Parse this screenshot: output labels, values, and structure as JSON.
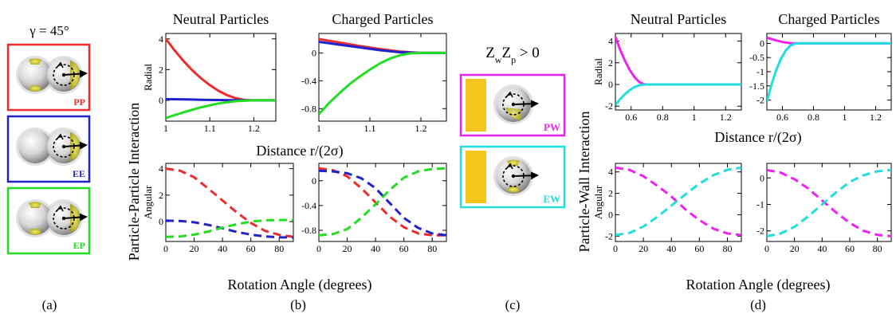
{
  "panel_a": {
    "gamma_label": "γ = 45°",
    "boxes": [
      {
        "label": "PP",
        "color": "#ee2b2b",
        "left_cap": true,
        "right_cap": true
      },
      {
        "label": "EE",
        "color": "#2222cc",
        "left_cap": false,
        "right_cap": true
      },
      {
        "label": "EP",
        "color": "#22dd22",
        "left_cap": true,
        "right_cap": true
      }
    ]
  },
  "panel_c": {
    "condition": "Z_wZ_p > 0",
    "boxes": [
      {
        "label": "PW",
        "color": "#ee22ee"
      },
      {
        "label": "EW",
        "color": "#22dddd"
      }
    ]
  },
  "panel_labels": [
    "(a)",
    "(b)",
    "(c)",
    "(d)"
  ],
  "colors": {
    "PP": "#ee2b2b",
    "EE": "#2222cc",
    "EP": "#22dd22",
    "PW": "#ee22ee",
    "EW": "#22dddd",
    "wall": "#f5c51e",
    "cap": "#d8d23c"
  },
  "chart_data": [
    {
      "id": "b-radial-neutral",
      "type": "line",
      "title": "Neutral Particles",
      "ylabel": "Radial",
      "xlim": [
        1,
        1.25
      ],
      "ylim": [
        -1.35,
        4.35
      ],
      "xticks": [
        1,
        1.1,
        1.2
      ],
      "xticklabels": [
        "1",
        "1.1",
        "1.2"
      ],
      "yticks": [
        0,
        2,
        4
      ],
      "yticklabels": [
        "0",
        "2",
        "4"
      ],
      "series": [
        {
          "color": "#ee2b2b",
          "dash": false,
          "x": [
            1,
            1.02,
            1.04,
            1.06,
            1.08,
            1.1,
            1.12,
            1.14,
            1.16,
            1.18,
            1.2,
            1.22,
            1.25
          ],
          "y": [
            4.0,
            3.25,
            2.57,
            1.96,
            1.44,
            0.99,
            0.62,
            0.33,
            0.13,
            0.02,
            0,
            0,
            0
          ]
        },
        {
          "color": "#2222cc",
          "dash": false,
          "x": [
            1,
            1.05,
            1.1,
            1.15,
            1.2,
            1.25
          ],
          "y": [
            0.08,
            0.06,
            0.03,
            0.01,
            0,
            0
          ]
        },
        {
          "color": "#22dd22",
          "dash": false,
          "x": [
            1,
            1.04,
            1.08,
            1.12,
            1.16,
            1.2,
            1.25
          ],
          "y": [
            -1.15,
            -0.78,
            -0.45,
            -0.2,
            -0.05,
            0,
            0
          ]
        }
      ]
    },
    {
      "id": "b-radial-charged",
      "type": "line",
      "title": "Charged Particles",
      "xlim": [
        1,
        1.25
      ],
      "ylim": [
        -0.98,
        0.28
      ],
      "xticks": [
        1,
        1.1,
        1.2
      ],
      "xticklabels": [
        "1",
        "1.1",
        "1.2"
      ],
      "yticks": [
        0,
        -0.4,
        -0.8
      ],
      "yticklabels": [
        "0",
        "-0.4",
        "-0.8"
      ],
      "series": [
        {
          "color": "#ee2b2b",
          "dash": false,
          "x": [
            1,
            1.04,
            1.08,
            1.12,
            1.16,
            1.2,
            1.25
          ],
          "y": [
            0.2,
            0.15,
            0.1,
            0.055,
            0.02,
            0,
            0
          ]
        },
        {
          "color": "#2222cc",
          "dash": false,
          "x": [
            1,
            1.04,
            1.08,
            1.12,
            1.16,
            1.2,
            1.25
          ],
          "y": [
            0.16,
            0.12,
            0.08,
            0.04,
            0.01,
            0,
            0
          ]
        },
        {
          "color": "#22dd22",
          "dash": false,
          "x": [
            1,
            1.02,
            1.04,
            1.06,
            1.08,
            1.1,
            1.12,
            1.14,
            1.16,
            1.18,
            1.2,
            1.25
          ],
          "y": [
            -0.88,
            -0.72,
            -0.58,
            -0.45,
            -0.34,
            -0.24,
            -0.15,
            -0.08,
            -0.03,
            -0.005,
            0,
            0
          ]
        }
      ]
    },
    {
      "id": "b-angular-neutral",
      "type": "line",
      "ylabel": "Angular",
      "xlim": [
        0,
        90
      ],
      "ylim": [
        -1.5,
        4.4
      ],
      "xticks": [
        0,
        20,
        40,
        60,
        80
      ],
      "xticklabels": [
        "0",
        "20",
        "40",
        "60",
        "80"
      ],
      "yticks": [
        0,
        2,
        4
      ],
      "yticklabels": [
        "0",
        "2",
        "4"
      ],
      "series": [
        {
          "color": "#ee2b2b",
          "dash": true,
          "x": [
            0,
            10,
            20,
            30,
            40,
            50,
            60,
            70,
            80,
            90
          ],
          "y": [
            4.0,
            3.85,
            3.35,
            2.5,
            1.6,
            0.7,
            -0.1,
            -0.7,
            -1.0,
            -1.15
          ]
        },
        {
          "color": "#2222cc",
          "dash": true,
          "x": [
            0,
            10,
            20,
            30,
            40,
            50,
            60,
            70,
            80,
            90
          ],
          "y": [
            0.08,
            0.05,
            -0.05,
            -0.25,
            -0.5,
            -0.78,
            -0.98,
            -1.12,
            -1.18,
            -1.2
          ]
        },
        {
          "color": "#22dd22",
          "dash": true,
          "x": [
            0,
            10,
            20,
            30,
            40,
            50,
            60,
            70,
            80,
            90
          ],
          "y": [
            -1.15,
            -1.12,
            -0.98,
            -0.75,
            -0.45,
            -0.2,
            0,
            0.1,
            0.12,
            0.12
          ]
        }
      ]
    },
    {
      "id": "b-angular-charged",
      "type": "line",
      "xlim": [
        0,
        90
      ],
      "ylim": [
        -0.98,
        0.28
      ],
      "xticks": [
        0,
        20,
        40,
        60,
        80
      ],
      "xticklabels": [
        "0",
        "20",
        "40",
        "60",
        "80"
      ],
      "yticks": [
        0,
        -0.4,
        -0.8
      ],
      "yticklabels": [
        "0",
        "-0.4",
        "-0.8"
      ],
      "series": [
        {
          "color": "#ee2b2b",
          "dash": true,
          "x": [
            0,
            10,
            20,
            30,
            40,
            50,
            60,
            70,
            80,
            90
          ],
          "y": [
            0.2,
            0.17,
            0.07,
            -0.12,
            -0.35,
            -0.58,
            -0.75,
            -0.85,
            -0.88,
            -0.88
          ]
        },
        {
          "color": "#2222cc",
          "dash": true,
          "x": [
            0,
            10,
            20,
            30,
            40,
            50,
            60,
            70,
            80,
            90
          ],
          "y": [
            0.16,
            0.15,
            0.12,
            0.04,
            -0.12,
            -0.36,
            -0.6,
            -0.76,
            -0.85,
            -0.88
          ]
        },
        {
          "color": "#22dd22",
          "dash": true,
          "x": [
            0,
            10,
            20,
            30,
            40,
            50,
            60,
            70,
            80,
            90
          ],
          "y": [
            -0.88,
            -0.86,
            -0.78,
            -0.6,
            -0.38,
            -0.15,
            0.05,
            0.15,
            0.19,
            0.2
          ]
        }
      ]
    },
    {
      "id": "d-radial-neutral",
      "type": "line",
      "title": "Neutral Particles",
      "ylabel": "Radial",
      "xlim": [
        0.5,
        1.3
      ],
      "ylim": [
        -2.35,
        4.7
      ],
      "xticks": [
        0.6,
        0.8,
        1,
        1.2
      ],
      "xticklabels": [
        "0.6",
        "0.8",
        "1",
        "1.2"
      ],
      "yticks": [
        -2,
        0,
        2,
        4
      ],
      "yticklabels": [
        "-2",
        "0",
        "2",
        "4"
      ],
      "series": [
        {
          "color": "#ee22ee",
          "dash": false,
          "x": [
            0.5,
            0.53,
            0.56,
            0.59,
            0.62,
            0.65,
            0.68,
            0.7,
            0.8,
            1.0,
            1.3
          ],
          "y": [
            4.4,
            3.2,
            2.2,
            1.35,
            0.7,
            0.25,
            0.03,
            0,
            0,
            0,
            0
          ]
        },
        {
          "color": "#22dddd",
          "dash": false,
          "x": [
            0.5,
            0.53,
            0.56,
            0.59,
            0.62,
            0.65,
            0.68,
            0.7,
            0.8,
            1.0,
            1.3
          ],
          "y": [
            -1.9,
            -1.35,
            -0.9,
            -0.52,
            -0.25,
            -0.08,
            -0.01,
            0,
            0,
            0,
            0
          ]
        }
      ]
    },
    {
      "id": "d-radial-charged",
      "type": "line",
      "title": "Charged Particles",
      "xlim": [
        0.5,
        1.3
      ],
      "ylim": [
        -2.35,
        0.35
      ],
      "xticks": [
        0.6,
        0.8,
        1,
        1.2
      ],
      "xticklabels": [
        "0.6",
        "0.8",
        "1",
        "1.2"
      ],
      "yticks": [
        -2,
        -1.5,
        -1,
        -0.5,
        0
      ],
      "yticklabels": [
        "-2",
        "-1.5",
        "-1",
        "-0.5",
        "0"
      ],
      "series": [
        {
          "color": "#ee22ee",
          "dash": false,
          "x": [
            0.5,
            0.55,
            0.6,
            0.65,
            0.7,
            0.8,
            1.0,
            1.3
          ],
          "y": [
            0.2,
            0.12,
            0.05,
            0.01,
            0,
            0,
            0,
            0
          ]
        },
        {
          "color": "#22dddd",
          "dash": false,
          "x": [
            0.5,
            0.53,
            0.56,
            0.59,
            0.62,
            0.65,
            0.68,
            0.7,
            0.8,
            1.0,
            1.3
          ],
          "y": [
            -2.05,
            -1.45,
            -0.95,
            -0.55,
            -0.26,
            -0.08,
            -0.01,
            0,
            0,
            0,
            0
          ]
        }
      ]
    },
    {
      "id": "d-angular-neutral",
      "type": "line",
      "ylabel": "Angular",
      "xlim": [
        0,
        90
      ],
      "ylim": [
        -2.5,
        4.8
      ],
      "xticks": [
        0,
        20,
        40,
        60,
        80
      ],
      "xticklabels": [
        "0",
        "20",
        "40",
        "60",
        "80"
      ],
      "yticks": [
        -2,
        0,
        2,
        4
      ],
      "yticklabels": [
        "-2",
        "0",
        "2",
        "4"
      ],
      "series": [
        {
          "color": "#ee22ee",
          "dash": true,
          "x": [
            0,
            10,
            20,
            30,
            40,
            50,
            60,
            70,
            80,
            90
          ],
          "y": [
            4.4,
            4.2,
            3.6,
            2.7,
            1.7,
            0.5,
            -0.5,
            -1.3,
            -1.75,
            -1.9
          ]
        },
        {
          "color": "#22dddd",
          "dash": true,
          "x": [
            0,
            10,
            20,
            30,
            40,
            50,
            60,
            70,
            80,
            90
          ],
          "y": [
            -1.9,
            -1.7,
            -1.1,
            -0.2,
            0.85,
            1.9,
            2.9,
            3.7,
            4.2,
            4.4
          ]
        }
      ]
    },
    {
      "id": "d-angular-charged",
      "type": "line",
      "xlim": [
        0,
        90
      ],
      "ylim": [
        -2.4,
        0.55
      ],
      "xticks": [
        0,
        20,
        40,
        60,
        80
      ],
      "xticklabels": [
        "0",
        "20",
        "40",
        "60",
        "80"
      ],
      "yticks": [
        -2,
        -1,
        0
      ],
      "yticklabels": [
        "-2",
        "-1",
        "0"
      ],
      "series": [
        {
          "color": "#ee22ee",
          "dash": true,
          "x": [
            0,
            10,
            20,
            30,
            40,
            50,
            60,
            70,
            80,
            90
          ],
          "y": [
            0.3,
            0.2,
            -0.05,
            -0.4,
            -0.85,
            -1.3,
            -1.7,
            -2.0,
            -2.15,
            -2.2
          ]
        },
        {
          "color": "#22dddd",
          "dash": true,
          "x": [
            0,
            10,
            20,
            30,
            40,
            50,
            60,
            70,
            80,
            90
          ],
          "y": [
            -2.2,
            -2.1,
            -1.85,
            -1.45,
            -1.0,
            -0.55,
            -0.15,
            0.1,
            0.25,
            0.3
          ]
        }
      ]
    }
  ],
  "axis_labels": {
    "b_xlabel_radial": "Distance r/(2σ)",
    "b_xlabel_angular": "Rotation Angle (degrees)",
    "b_ylabel_group": "Particle-Particle Interaction",
    "d_xlabel_radial": "Distance r/(2σ)",
    "d_xlabel_angular": "Rotation Angle (degrees)",
    "d_ylabel_group": "Particle-Wall Interaction"
  }
}
